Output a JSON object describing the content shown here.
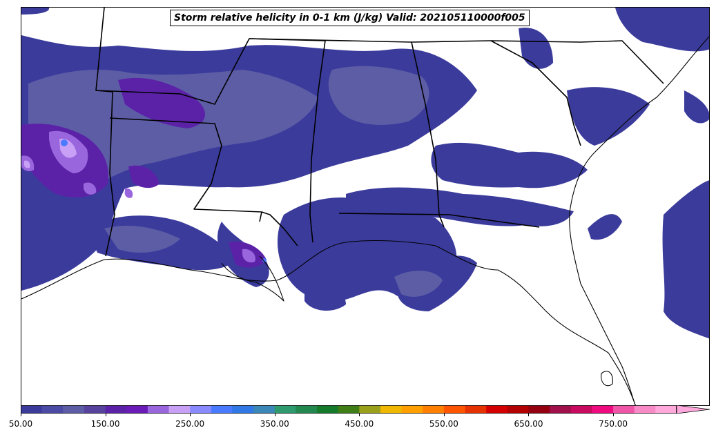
{
  "title": "Storm relative helicity in 0-1 km (J/kg) Valid: 202105110000f005",
  "colorbar": {
    "min": 50,
    "max": 850,
    "step": 25,
    "extend": "max",
    "colors": [
      "#3b3b9c",
      "#4b4ba6",
      "#5d5da6",
      "#57439e",
      "#5b22a8",
      "#6a1bb8",
      "#9a66dd",
      "#c8a0f5",
      "#8a8aff",
      "#4a7aff",
      "#2f78e6",
      "#3a87b8",
      "#2e9a6e",
      "#23884e",
      "#157a2a",
      "#3f7d16",
      "#9aa01a",
      "#f0b800",
      "#ffa000",
      "#ff7f00",
      "#ff5500",
      "#e63200",
      "#d40000",
      "#b30000",
      "#940010",
      "#a0104a",
      "#c80a60",
      "#ef0a80",
      "#f055a8",
      "#f88ac8",
      "#ffa8dc"
    ],
    "tick_values": [
      50,
      150,
      250,
      350,
      450,
      550,
      650,
      750
    ],
    "tick_labels": [
      "50.00",
      "150.00",
      "250.00",
      "350.00",
      "450.00",
      "550.00",
      "650.00",
      "750.00"
    ]
  },
  "map": {
    "region": "Southeastern United States",
    "field_colors": {
      "low": "#3b3b9c",
      "mid": "#5d5da6",
      "high": "#5b22a8",
      "peak": "#9a66dd",
      "max": "#c8a0f5",
      "hotspot": "#4a7aff"
    },
    "boundary_color": "#000000"
  }
}
